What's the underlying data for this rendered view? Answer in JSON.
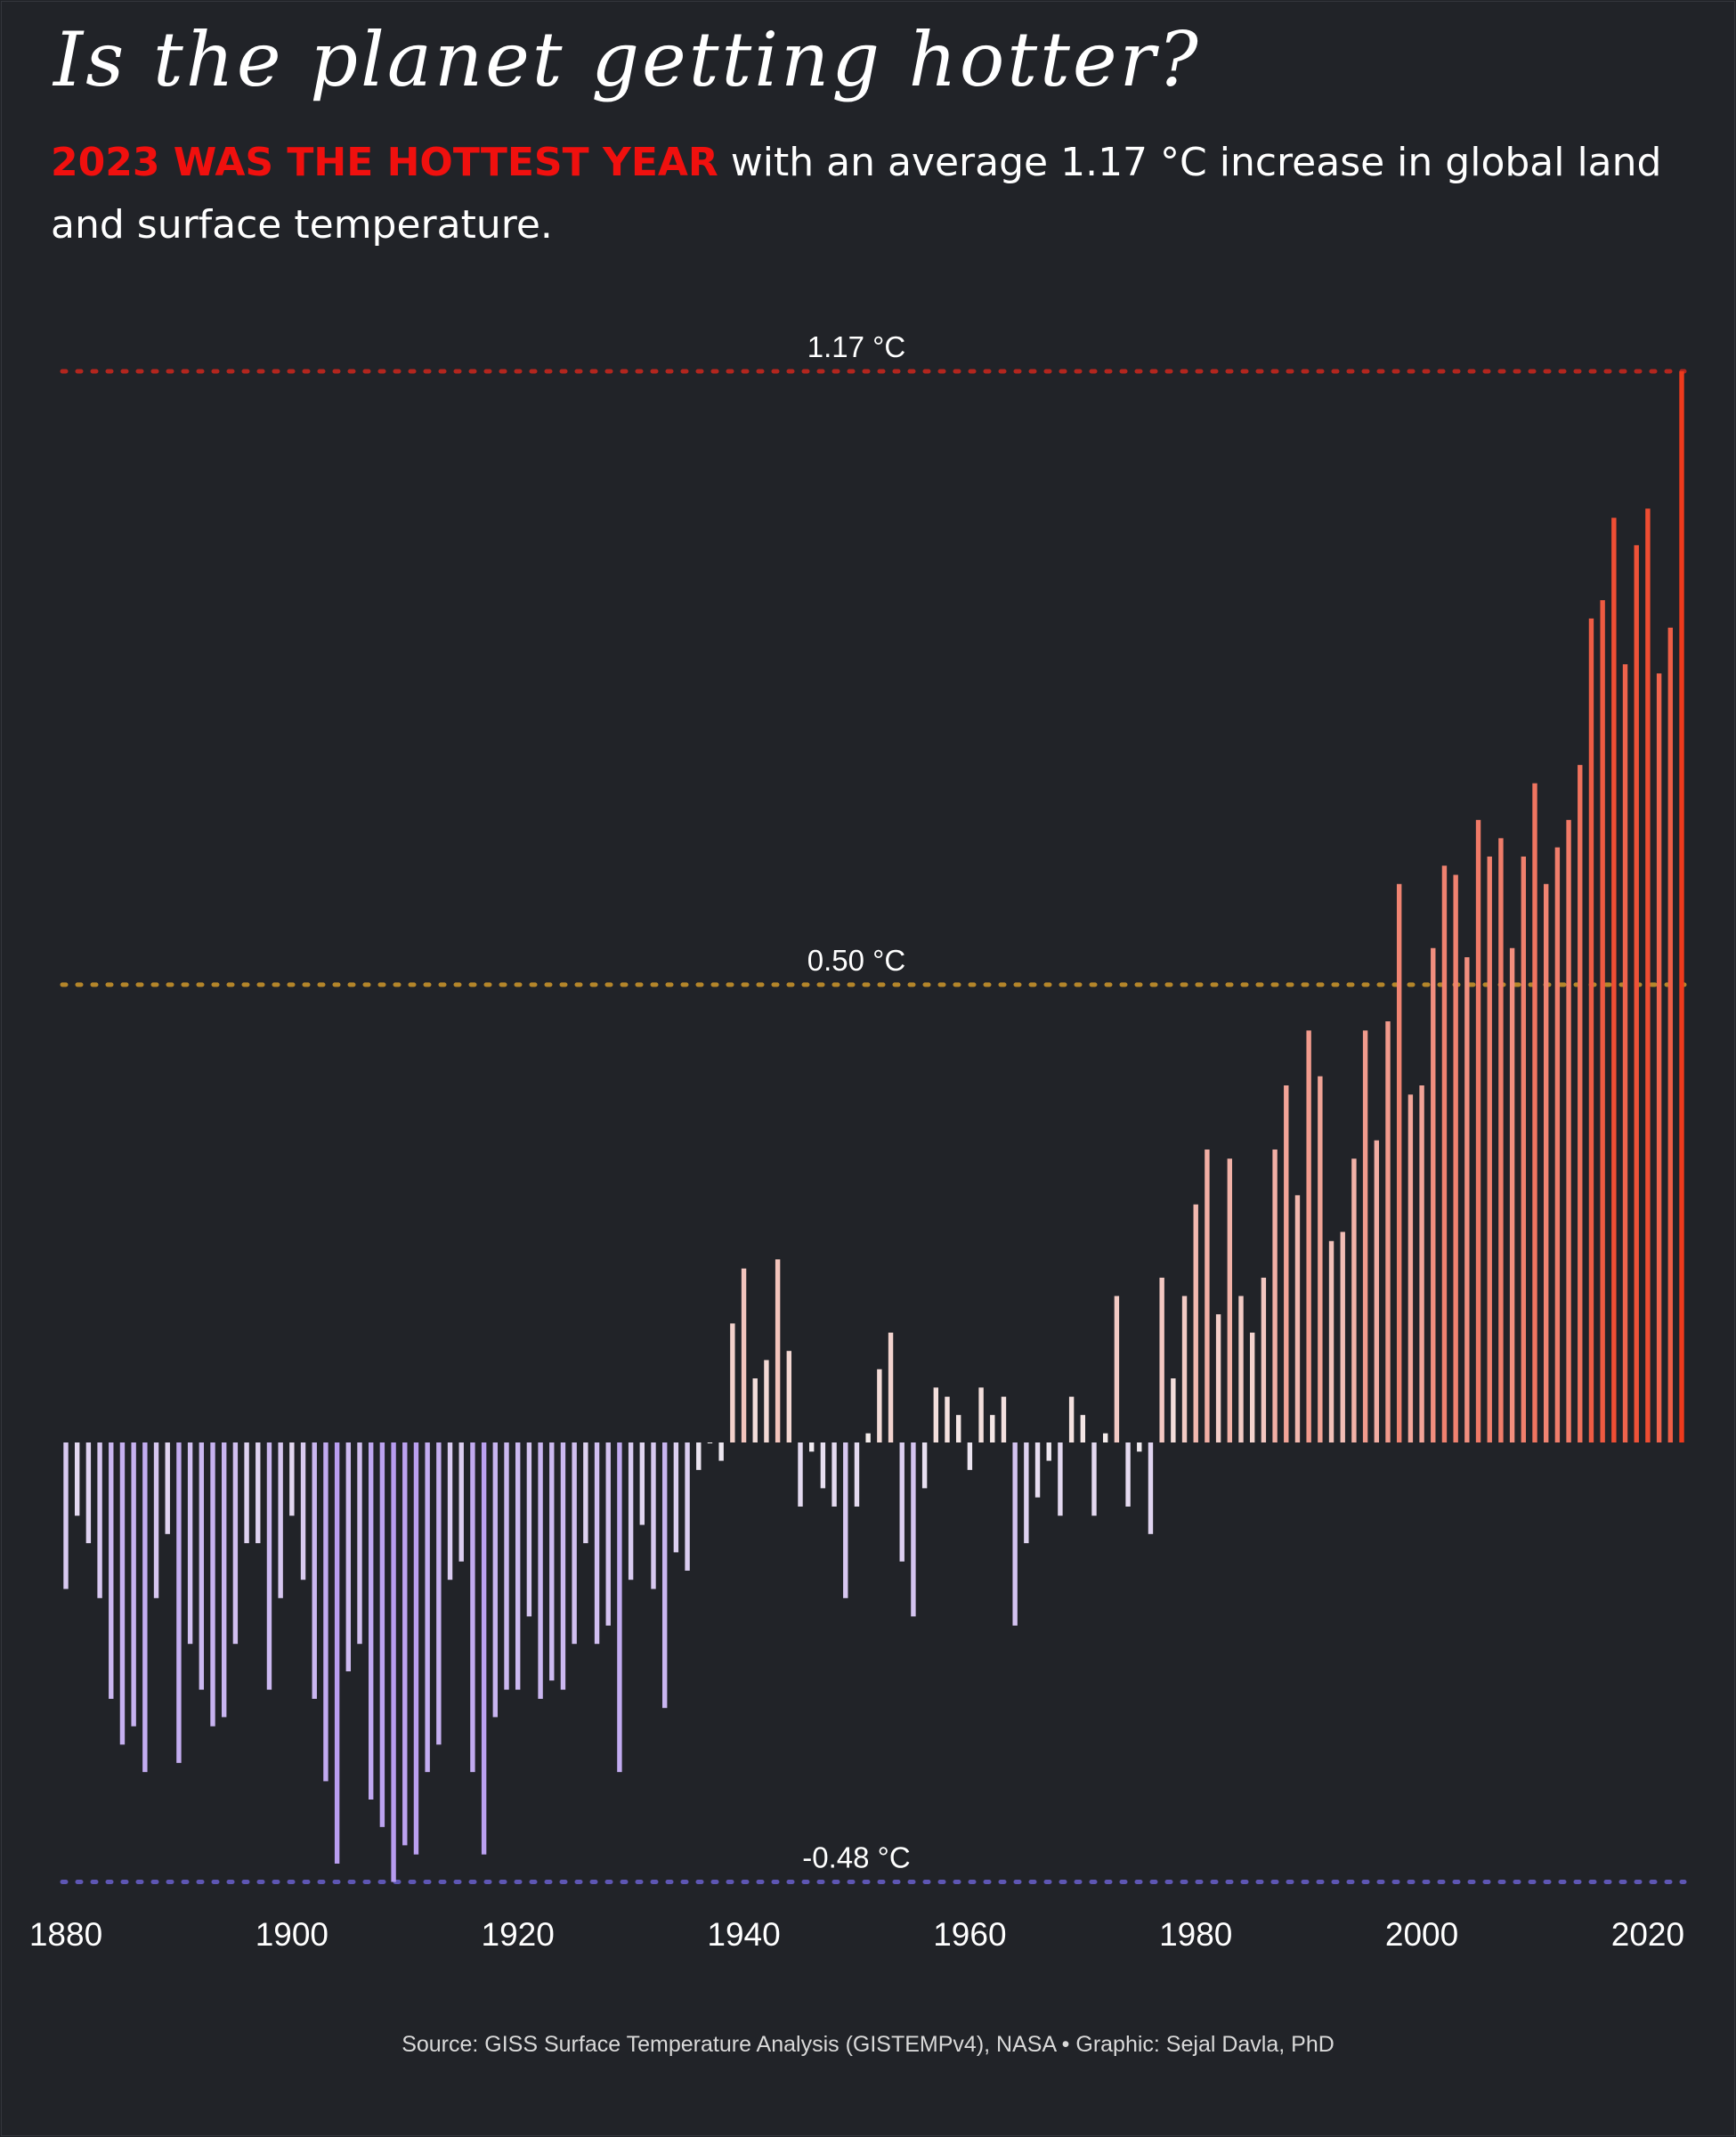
{
  "header": {
    "title": "Is the planet getting hotter?",
    "subtitle_highlight": "2023 WAS THE HOTTEST YEAR",
    "subtitle_rest": " with an average 1.17 °C increase in global land and surface temperature."
  },
  "footer": {
    "source": "Source: GISS Surface Temperature Analysis (GISTEMPv4), NASA • Graphic: Sejal Davla, PhD"
  },
  "colors": {
    "background": "#212328",
    "highlight": "#f0100e",
    "cold": "#b79cf0",
    "warm": "#ee3a1c",
    "neutral": "#f4f0f0"
  },
  "chart_data": {
    "type": "bar",
    "x_start": 1880,
    "x_end": 2023,
    "xticks": [
      "1880",
      "1900",
      "1920",
      "1940",
      "1960",
      "1980",
      "2000",
      "2020"
    ],
    "ylim": [
      -0.48,
      1.17
    ],
    "grid": false,
    "reference_lines": [
      {
        "label": "1.17 °C",
        "value": 1.17,
        "color": "#b3261e"
      },
      {
        "label": "0.50 °C",
        "value": 0.5,
        "color": "#b5862a"
      },
      {
        "label": "-0.48 °C",
        "value": -0.48,
        "color": "#5e56b4"
      }
    ],
    "values": [
      -0.16,
      -0.08,
      -0.11,
      -0.17,
      -0.28,
      -0.33,
      -0.31,
      -0.36,
      -0.17,
      -0.1,
      -0.35,
      -0.22,
      -0.27,
      -0.31,
      -0.3,
      -0.22,
      -0.11,
      -0.11,
      -0.27,
      -0.17,
      -0.08,
      -0.15,
      -0.28,
      -0.37,
      -0.46,
      -0.25,
      -0.22,
      -0.39,
      -0.42,
      -0.48,
      -0.44,
      -0.45,
      -0.36,
      -0.33,
      -0.15,
      -0.13,
      -0.36,
      -0.45,
      -0.3,
      -0.27,
      -0.27,
      -0.19,
      -0.28,
      -0.26,
      -0.27,
      -0.22,
      -0.11,
      -0.22,
      -0.2,
      -0.36,
      -0.15,
      -0.09,
      -0.16,
      -0.29,
      -0.12,
      -0.14,
      -0.03,
      0.0,
      -0.02,
      0.13,
      0.19,
      0.07,
      0.09,
      0.2,
      0.1,
      -0.07,
      -0.01,
      -0.05,
      -0.07,
      -0.17,
      -0.07,
      0.01,
      0.08,
      0.12,
      -0.13,
      -0.19,
      -0.05,
      0.06,
      0.05,
      0.03,
      -0.03,
      0.06,
      0.03,
      0.05,
      -0.2,
      -0.11,
      -0.06,
      -0.02,
      -0.08,
      0.05,
      0.03,
      -0.08,
      0.01,
      0.16,
      -0.07,
      -0.01,
      -0.1,
      0.18,
      0.07,
      0.16,
      0.26,
      0.32,
      0.14,
      0.31,
      0.16,
      0.12,
      0.18,
      0.32,
      0.39,
      0.27,
      0.45,
      0.4,
      0.22,
      0.23,
      0.31,
      0.45,
      0.33,
      0.46,
      0.61,
      0.38,
      0.39,
      0.54,
      0.63,
      0.62,
      0.53,
      0.68,
      0.64,
      0.66,
      0.54,
      0.64,
      0.72,
      0.61,
      0.65,
      0.68,
      0.74,
      0.9,
      0.92,
      1.01,
      0.85,
      0.98,
      1.02,
      0.84,
      0.89,
      1.17
    ]
  }
}
